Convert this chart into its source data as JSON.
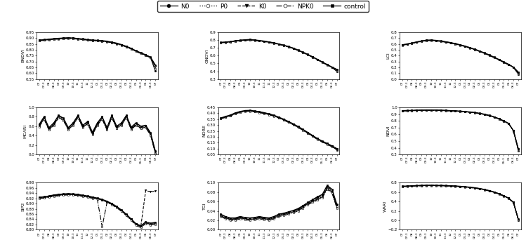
{
  "legend_labels": [
    "N0",
    "P0",
    "K0",
    "NPK0",
    "control"
  ],
  "x_dates": [
    "07",
    "07.3",
    "08",
    "08.3",
    "09",
    "09.3",
    "10",
    "10.3",
    "11",
    "11.3",
    "12",
    "12.3",
    "01",
    "01.3",
    "02",
    "02.3",
    "03",
    "03.3",
    "04",
    "04.3",
    "05",
    "05.3",
    "06",
    "06.3",
    "07"
  ],
  "subplot_order": [
    [
      "BNDVI",
      "GNDVI",
      "LCI"
    ],
    [
      "MCARI",
      "NDRE",
      "NDVI"
    ],
    [
      "SIP2",
      "TGI",
      "WARI"
    ]
  ],
  "ylims": {
    "BNDVI": [
      0.55,
      0.95
    ],
    "GNDVI": [
      0.3,
      0.9
    ],
    "LCI": [
      0.0,
      0.8
    ],
    "MCARI": [
      0.0,
      1.0
    ],
    "NDRE": [
      0.05,
      0.45
    ],
    "NDVI": [
      0.3,
      1.0
    ],
    "SIP2": [
      0.8,
      0.98
    ],
    "TGI": [
      0.0,
      0.1
    ],
    "WARI": [
      -0.2,
      0.8
    ]
  },
  "yticks": {
    "BNDVI": [
      0.55,
      0.6,
      0.65,
      0.7,
      0.75,
      0.8,
      0.85,
      0.9,
      0.95
    ],
    "GNDVI": [
      0.3,
      0.4,
      0.5,
      0.6,
      0.7,
      0.8,
      0.9
    ],
    "LCI": [
      0.0,
      0.1,
      0.2,
      0.3,
      0.4,
      0.5,
      0.6,
      0.7,
      0.8
    ],
    "MCARI": [
      0.0,
      0.2,
      0.4,
      0.6,
      0.8,
      1.0
    ],
    "NDRE": [
      0.05,
      0.1,
      0.15,
      0.2,
      0.25,
      0.3,
      0.35,
      0.4,
      0.45
    ],
    "NDVI": [
      0.3,
      0.4,
      0.5,
      0.6,
      0.7,
      0.8,
      0.9,
      1.0
    ],
    "SIP2": [
      0.8,
      0.82,
      0.84,
      0.86,
      0.88,
      0.9,
      0.92,
      0.94,
      0.96,
      0.98
    ],
    "TGI": [
      0.0,
      0.02,
      0.04,
      0.06,
      0.08,
      0.1
    ],
    "WARI": [
      -0.2,
      0.0,
      0.2,
      0.4,
      0.6,
      0.8
    ]
  },
  "series_data": {
    "BNDVI": [
      [
        0.878,
        0.882,
        0.886,
        0.89,
        0.893,
        0.896,
        0.898,
        0.896,
        0.891,
        0.888,
        0.882,
        0.879,
        0.876,
        0.873,
        0.869,
        0.861,
        0.852,
        0.84,
        0.825,
        0.808,
        0.787,
        0.77,
        0.753,
        0.733,
        0.618
      ],
      [
        0.879,
        0.883,
        0.887,
        0.891,
        0.894,
        0.897,
        0.899,
        0.897,
        0.892,
        0.889,
        0.883,
        0.88,
        0.877,
        0.874,
        0.87,
        0.862,
        0.853,
        0.841,
        0.826,
        0.809,
        0.788,
        0.771,
        0.754,
        0.734,
        0.64
      ],
      [
        0.88,
        0.884,
        0.888,
        0.892,
        0.895,
        0.898,
        0.9,
        0.898,
        0.893,
        0.89,
        0.884,
        0.881,
        0.878,
        0.875,
        0.871,
        0.863,
        0.854,
        0.842,
        0.827,
        0.81,
        0.789,
        0.772,
        0.755,
        0.735,
        0.655
      ],
      [
        0.876,
        0.88,
        0.884,
        0.888,
        0.891,
        0.894,
        0.896,
        0.894,
        0.889,
        0.886,
        0.88,
        0.877,
        0.874,
        0.871,
        0.867,
        0.859,
        0.85,
        0.838,
        0.823,
        0.806,
        0.785,
        0.768,
        0.751,
        0.731,
        0.66
      ],
      [
        0.882,
        0.886,
        0.89,
        0.894,
        0.897,
        0.9,
        0.902,
        0.9,
        0.895,
        0.892,
        0.886,
        0.883,
        0.88,
        0.877,
        0.873,
        0.865,
        0.856,
        0.844,
        0.829,
        0.812,
        0.791,
        0.774,
        0.757,
        0.737,
        0.67
      ]
    ],
    "GNDVI": [
      [
        0.765,
        0.77,
        0.775,
        0.785,
        0.792,
        0.798,
        0.802,
        0.796,
        0.789,
        0.781,
        0.771,
        0.759,
        0.745,
        0.73,
        0.712,
        0.692,
        0.667,
        0.64,
        0.612,
        0.58,
        0.548,
        0.515,
        0.482,
        0.45,
        0.398
      ],
      [
        0.766,
        0.771,
        0.776,
        0.786,
        0.793,
        0.799,
        0.803,
        0.797,
        0.79,
        0.782,
        0.772,
        0.76,
        0.746,
        0.731,
        0.713,
        0.693,
        0.668,
        0.641,
        0.613,
        0.581,
        0.549,
        0.516,
        0.483,
        0.451,
        0.408
      ],
      [
        0.767,
        0.772,
        0.777,
        0.787,
        0.794,
        0.8,
        0.804,
        0.798,
        0.791,
        0.783,
        0.773,
        0.761,
        0.747,
        0.732,
        0.714,
        0.694,
        0.669,
        0.642,
        0.614,
        0.582,
        0.55,
        0.517,
        0.484,
        0.452,
        0.416
      ],
      [
        0.763,
        0.768,
        0.773,
        0.783,
        0.79,
        0.796,
        0.8,
        0.794,
        0.787,
        0.779,
        0.769,
        0.757,
        0.743,
        0.728,
        0.71,
        0.69,
        0.665,
        0.638,
        0.61,
        0.578,
        0.546,
        0.513,
        0.48,
        0.448,
        0.42
      ],
      [
        0.769,
        0.774,
        0.779,
        0.789,
        0.796,
        0.802,
        0.806,
        0.8,
        0.793,
        0.785,
        0.775,
        0.763,
        0.749,
        0.734,
        0.716,
        0.696,
        0.671,
        0.644,
        0.616,
        0.584,
        0.552,
        0.519,
        0.486,
        0.454,
        0.425
      ]
    ],
    "LCI": [
      [
        0.578,
        0.593,
        0.608,
        0.628,
        0.643,
        0.656,
        0.66,
        0.653,
        0.643,
        0.63,
        0.616,
        0.598,
        0.578,
        0.556,
        0.53,
        0.503,
        0.473,
        0.44,
        0.405,
        0.368,
        0.328,
        0.286,
        0.246,
        0.198,
        0.085
      ],
      [
        0.58,
        0.595,
        0.61,
        0.63,
        0.645,
        0.658,
        0.662,
        0.655,
        0.645,
        0.632,
        0.618,
        0.6,
        0.58,
        0.558,
        0.532,
        0.505,
        0.475,
        0.442,
        0.407,
        0.37,
        0.33,
        0.288,
        0.248,
        0.2,
        0.098
      ],
      [
        0.582,
        0.597,
        0.612,
        0.632,
        0.647,
        0.66,
        0.664,
        0.657,
        0.647,
        0.634,
        0.62,
        0.602,
        0.582,
        0.56,
        0.534,
        0.507,
        0.477,
        0.444,
        0.409,
        0.372,
        0.332,
        0.29,
        0.25,
        0.202,
        0.11
      ],
      [
        0.576,
        0.591,
        0.606,
        0.626,
        0.641,
        0.654,
        0.658,
        0.651,
        0.641,
        0.628,
        0.614,
        0.596,
        0.576,
        0.554,
        0.528,
        0.501,
        0.471,
        0.438,
        0.403,
        0.366,
        0.326,
        0.284,
        0.244,
        0.196,
        0.115
      ],
      [
        0.584,
        0.599,
        0.614,
        0.634,
        0.649,
        0.662,
        0.666,
        0.659,
        0.649,
        0.636,
        0.622,
        0.604,
        0.584,
        0.562,
        0.536,
        0.509,
        0.479,
        0.446,
        0.411,
        0.374,
        0.334,
        0.292,
        0.252,
        0.204,
        0.12
      ]
    ],
    "MCARI": [
      [
        0.6,
        0.76,
        0.53,
        0.63,
        0.79,
        0.73,
        0.53,
        0.63,
        0.79,
        0.58,
        0.66,
        0.43,
        0.63,
        0.76,
        0.53,
        0.79,
        0.56,
        0.63,
        0.79,
        0.54,
        0.63,
        0.56,
        0.58,
        0.42,
        0.03
      ],
      [
        0.62,
        0.78,
        0.55,
        0.65,
        0.81,
        0.75,
        0.55,
        0.65,
        0.81,
        0.6,
        0.68,
        0.45,
        0.65,
        0.78,
        0.55,
        0.81,
        0.58,
        0.65,
        0.81,
        0.56,
        0.65,
        0.58,
        0.6,
        0.44,
        0.05
      ],
      [
        0.63,
        0.79,
        0.56,
        0.66,
        0.82,
        0.76,
        0.56,
        0.66,
        0.82,
        0.61,
        0.69,
        0.46,
        0.66,
        0.79,
        0.56,
        0.82,
        0.59,
        0.66,
        0.82,
        0.57,
        0.66,
        0.59,
        0.61,
        0.45,
        0.06
      ],
      [
        0.59,
        0.75,
        0.52,
        0.62,
        0.78,
        0.72,
        0.52,
        0.62,
        0.78,
        0.57,
        0.65,
        0.42,
        0.62,
        0.75,
        0.52,
        0.78,
        0.55,
        0.62,
        0.78,
        0.53,
        0.62,
        0.55,
        0.57,
        0.41,
        0.02
      ],
      [
        0.64,
        0.8,
        0.57,
        0.67,
        0.83,
        0.77,
        0.57,
        0.67,
        0.83,
        0.62,
        0.7,
        0.47,
        0.67,
        0.8,
        0.57,
        0.83,
        0.6,
        0.67,
        0.83,
        0.58,
        0.67,
        0.6,
        0.62,
        0.46,
        0.07
      ]
    ],
    "NDRE": [
      [
        0.355,
        0.368,
        0.38,
        0.398,
        0.41,
        0.418,
        0.42,
        0.415,
        0.408,
        0.4,
        0.39,
        0.378,
        0.362,
        0.345,
        0.325,
        0.305,
        0.282,
        0.258,
        0.232,
        0.206,
        0.18,
        0.158,
        0.138,
        0.118,
        0.088
      ],
      [
        0.356,
        0.369,
        0.381,
        0.399,
        0.411,
        0.419,
        0.421,
        0.416,
        0.409,
        0.401,
        0.391,
        0.379,
        0.363,
        0.346,
        0.326,
        0.306,
        0.283,
        0.259,
        0.233,
        0.207,
        0.181,
        0.159,
        0.139,
        0.119,
        0.092
      ],
      [
        0.357,
        0.37,
        0.382,
        0.4,
        0.412,
        0.42,
        0.422,
        0.417,
        0.41,
        0.402,
        0.392,
        0.38,
        0.364,
        0.347,
        0.327,
        0.307,
        0.284,
        0.26,
        0.234,
        0.208,
        0.182,
        0.16,
        0.14,
        0.12,
        0.095
      ],
      [
        0.352,
        0.365,
        0.377,
        0.395,
        0.407,
        0.415,
        0.417,
        0.412,
        0.405,
        0.397,
        0.387,
        0.375,
        0.359,
        0.342,
        0.322,
        0.302,
        0.279,
        0.255,
        0.229,
        0.203,
        0.177,
        0.155,
        0.135,
        0.115,
        0.098
      ],
      [
        0.36,
        0.373,
        0.385,
        0.403,
        0.415,
        0.423,
        0.425,
        0.42,
        0.413,
        0.405,
        0.395,
        0.383,
        0.367,
        0.35,
        0.33,
        0.31,
        0.287,
        0.263,
        0.237,
        0.211,
        0.185,
        0.163,
        0.143,
        0.123,
        0.1
      ]
    ],
    "NDVI": [
      [
        0.948,
        0.95,
        0.952,
        0.955,
        0.957,
        0.958,
        0.958,
        0.957,
        0.955,
        0.952,
        0.948,
        0.945,
        0.94,
        0.935,
        0.928,
        0.92,
        0.908,
        0.895,
        0.878,
        0.855,
        0.828,
        0.795,
        0.758,
        0.65,
        0.355
      ],
      [
        0.949,
        0.951,
        0.953,
        0.956,
        0.958,
        0.959,
        0.959,
        0.958,
        0.956,
        0.953,
        0.949,
        0.946,
        0.941,
        0.936,
        0.929,
        0.921,
        0.909,
        0.896,
        0.879,
        0.856,
        0.829,
        0.796,
        0.759,
        0.651,
        0.365
      ],
      [
        0.95,
        0.952,
        0.954,
        0.957,
        0.959,
        0.96,
        0.96,
        0.959,
        0.957,
        0.954,
        0.95,
        0.947,
        0.942,
        0.937,
        0.93,
        0.922,
        0.91,
        0.897,
        0.88,
        0.857,
        0.83,
        0.797,
        0.76,
        0.652,
        0.375
      ],
      [
        0.946,
        0.948,
        0.95,
        0.953,
        0.955,
        0.956,
        0.956,
        0.955,
        0.953,
        0.95,
        0.946,
        0.943,
        0.938,
        0.933,
        0.926,
        0.918,
        0.906,
        0.893,
        0.876,
        0.853,
        0.826,
        0.793,
        0.756,
        0.648,
        0.38
      ],
      [
        0.952,
        0.954,
        0.956,
        0.959,
        0.961,
        0.962,
        0.962,
        0.961,
        0.959,
        0.956,
        0.952,
        0.949,
        0.944,
        0.939,
        0.932,
        0.924,
        0.912,
        0.899,
        0.882,
        0.859,
        0.832,
        0.799,
        0.762,
        0.654,
        0.385
      ]
    ],
    "SIP2": [
      [
        0.921,
        0.923,
        0.926,
        0.93,
        0.932,
        0.934,
        0.935,
        0.934,
        0.932,
        0.929,
        0.926,
        0.922,
        0.918,
        0.913,
        0.906,
        0.897,
        0.886,
        0.872,
        0.856,
        0.838,
        0.82,
        0.812,
        0.826,
        0.821,
        0.824
      ],
      [
        0.922,
        0.924,
        0.927,
        0.931,
        0.933,
        0.935,
        0.936,
        0.935,
        0.933,
        0.93,
        0.927,
        0.923,
        0.919,
        0.914,
        0.907,
        0.898,
        0.887,
        0.873,
        0.857,
        0.839,
        0.821,
        0.813,
        0.828,
        0.823,
        0.826
      ],
      [
        0.923,
        0.925,
        0.928,
        0.932,
        0.934,
        0.936,
        0.937,
        0.936,
        0.934,
        0.931,
        0.928,
        0.924,
        0.92,
        0.915,
        0.908,
        0.899,
        0.888,
        0.874,
        0.858,
        0.84,
        0.822,
        0.814,
        0.95,
        0.945,
        0.948
      ],
      [
        0.919,
        0.921,
        0.924,
        0.928,
        0.93,
        0.932,
        0.933,
        0.932,
        0.93,
        0.927,
        0.924,
        0.92,
        0.916,
        0.811,
        0.904,
        0.895,
        0.884,
        0.87,
        0.854,
        0.836,
        0.816,
        0.808,
        0.823,
        0.818,
        0.821
      ],
      [
        0.924,
        0.926,
        0.929,
        0.933,
        0.935,
        0.937,
        0.938,
        0.937,
        0.935,
        0.932,
        0.929,
        0.925,
        0.921,
        0.916,
        0.909,
        0.9,
        0.889,
        0.875,
        0.859,
        0.841,
        0.823,
        0.815,
        0.83,
        0.825,
        0.828
      ]
    ],
    "TGI": [
      [
        0.03,
        0.025,
        0.022,
        0.022,
        0.025,
        0.023,
        0.022,
        0.023,
        0.025,
        0.023,
        0.022,
        0.025,
        0.03,
        0.032,
        0.035,
        0.038,
        0.042,
        0.048,
        0.055,
        0.06,
        0.065,
        0.07,
        0.088,
        0.08,
        0.048
      ],
      [
        0.031,
        0.026,
        0.023,
        0.023,
        0.026,
        0.024,
        0.023,
        0.024,
        0.026,
        0.024,
        0.023,
        0.026,
        0.031,
        0.033,
        0.036,
        0.039,
        0.043,
        0.049,
        0.056,
        0.061,
        0.066,
        0.071,
        0.09,
        0.082,
        0.05
      ],
      [
        0.032,
        0.027,
        0.024,
        0.024,
        0.027,
        0.025,
        0.024,
        0.025,
        0.027,
        0.025,
        0.024,
        0.027,
        0.032,
        0.034,
        0.037,
        0.04,
        0.044,
        0.05,
        0.057,
        0.062,
        0.068,
        0.073,
        0.092,
        0.084,
        0.052
      ],
      [
        0.028,
        0.023,
        0.02,
        0.02,
        0.023,
        0.021,
        0.02,
        0.021,
        0.023,
        0.021,
        0.02,
        0.023,
        0.028,
        0.03,
        0.033,
        0.036,
        0.04,
        0.046,
        0.053,
        0.058,
        0.063,
        0.068,
        0.086,
        0.078,
        0.046
      ],
      [
        0.033,
        0.028,
        0.025,
        0.025,
        0.028,
        0.026,
        0.025,
        0.026,
        0.028,
        0.026,
        0.025,
        0.028,
        0.033,
        0.035,
        0.038,
        0.041,
        0.045,
        0.051,
        0.058,
        0.064,
        0.07,
        0.075,
        0.094,
        0.086,
        0.054
      ]
    ],
    "WARI": [
      [
        0.718,
        0.723,
        0.728,
        0.733,
        0.736,
        0.738,
        0.74,
        0.738,
        0.736,
        0.733,
        0.728,
        0.723,
        0.716,
        0.708,
        0.698,
        0.686,
        0.67,
        0.65,
        0.626,
        0.596,
        0.56,
        0.516,
        0.466,
        0.375,
        0.005
      ],
      [
        0.72,
        0.725,
        0.73,
        0.735,
        0.738,
        0.74,
        0.742,
        0.74,
        0.738,
        0.735,
        0.73,
        0.725,
        0.718,
        0.71,
        0.7,
        0.688,
        0.672,
        0.652,
        0.628,
        0.598,
        0.562,
        0.518,
        0.468,
        0.378,
        0.012
      ],
      [
        0.722,
        0.727,
        0.732,
        0.737,
        0.74,
        0.742,
        0.744,
        0.742,
        0.74,
        0.737,
        0.732,
        0.727,
        0.72,
        0.712,
        0.702,
        0.69,
        0.674,
        0.654,
        0.63,
        0.6,
        0.564,
        0.52,
        0.47,
        0.381,
        0.018
      ],
      [
        0.715,
        0.72,
        0.725,
        0.73,
        0.733,
        0.735,
        0.737,
        0.735,
        0.733,
        0.73,
        0.725,
        0.72,
        0.713,
        0.705,
        0.695,
        0.683,
        0.667,
        0.647,
        0.623,
        0.593,
        0.557,
        0.513,
        0.463,
        0.372,
        0.02
      ],
      [
        0.724,
        0.729,
        0.734,
        0.739,
        0.742,
        0.744,
        0.746,
        0.744,
        0.742,
        0.739,
        0.734,
        0.729,
        0.722,
        0.714,
        0.704,
        0.692,
        0.676,
        0.656,
        0.632,
        0.602,
        0.566,
        0.522,
        0.472,
        0.383,
        0.025
      ]
    ]
  }
}
